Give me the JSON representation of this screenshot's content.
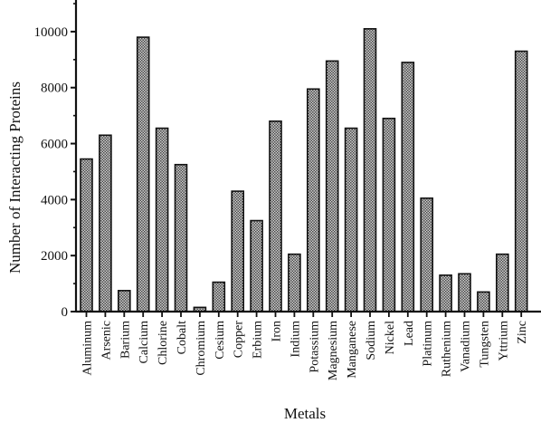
{
  "chart_data": {
    "type": "bar",
    "title": "",
    "xlabel": "Metals",
    "ylabel": "Number  of Interacting Proteins",
    "ylim": [
      0,
      11000
    ],
    "yticks": [
      0,
      2000,
      4000,
      6000,
      8000,
      10000
    ],
    "grid": false,
    "categories": [
      "Aluminum",
      "Arsenic",
      "Barium",
      "Calcium",
      "Chlorine",
      "Cobalt",
      "Chromium",
      "Cesium",
      "Copper",
      "Erbium",
      "Iron",
      "Indium",
      "Potassium",
      "Magnesium",
      "Manganese",
      "Sodium",
      "Nickel",
      "Lead",
      "Platinum",
      "Ruthenium",
      "Vanadium",
      "Tungsten",
      "Yttrium",
      "Zinc"
    ],
    "values": [
      5450,
      6300,
      750,
      9800,
      6550,
      5250,
      150,
      1050,
      4300,
      3250,
      6800,
      2050,
      7950,
      8950,
      6550,
      10100,
      6900,
      8900,
      4050,
      1300,
      1350,
      700,
      2050,
      9300
    ],
    "bar_fill": "#9a9a9a",
    "bar_stroke": "#111111"
  }
}
